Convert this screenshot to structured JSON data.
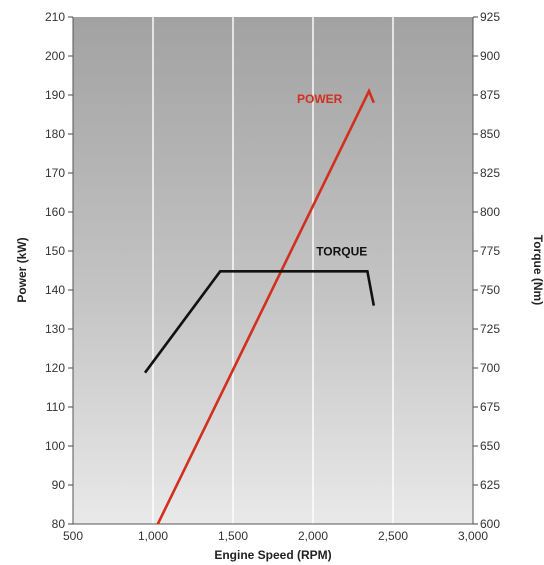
{
  "chart_data": {
    "type": "line",
    "xlabel": "Engine Speed (RPM)",
    "ylabel_left": "Power (kW)",
    "ylabel_right": "Torque (Nm)",
    "xlim": [
      500,
      3000
    ],
    "ylim_left": [
      80,
      210
    ],
    "ylim_right": [
      600,
      925
    ],
    "x_ticks": [
      "500",
      "1,000",
      "1,500",
      "2,000",
      "2,500",
      "3,000"
    ],
    "y_left_ticks": [
      "80",
      "90",
      "100",
      "110",
      "120",
      "130",
      "140",
      "150",
      "160",
      "170",
      "180",
      "190",
      "200",
      "210"
    ],
    "y_right_ticks": [
      "600",
      "625",
      "650",
      "675",
      "700",
      "725",
      "750",
      "775",
      "800",
      "825",
      "850",
      "875",
      "900",
      "925"
    ],
    "grid": true,
    "series": [
      {
        "name": "POWER",
        "axis": "left",
        "color": "#d32f1e",
        "points": [
          [
            1030,
            80
          ],
          [
            2350,
            191
          ],
          [
            2380,
            188
          ]
        ]
      },
      {
        "name": "TORQUE",
        "axis": "right",
        "color": "#111111",
        "points": [
          [
            950,
            697
          ],
          [
            1420,
            762
          ],
          [
            2340,
            762
          ],
          [
            2380,
            740
          ]
        ]
      }
    ]
  }
}
